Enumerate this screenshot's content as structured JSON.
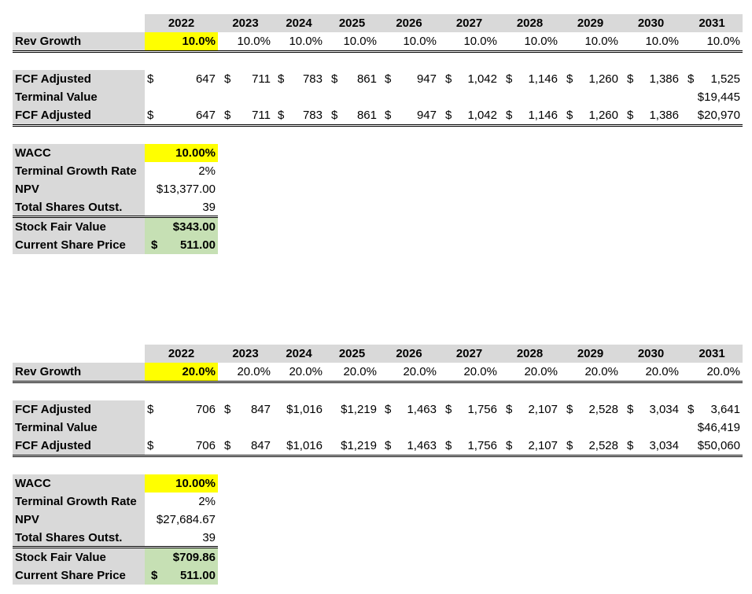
{
  "sheets": [
    {
      "years": [
        "2022",
        "2023",
        "2024",
        "2025",
        "2026",
        "2027",
        "2028",
        "2029",
        "2030",
        "2031"
      ],
      "rev_growth_label": "Rev Growth",
      "rev_growth": [
        "10.0%",
        "10.0%",
        "10.0%",
        "10.0%",
        "10.0%",
        "10.0%",
        "10.0%",
        "10.0%",
        "10.0%",
        "10.0%"
      ],
      "fcf1_label": "FCF Adjusted",
      "fcf1_dollars": [
        "$",
        "$",
        "$",
        "$",
        "$",
        "$",
        "$",
        "$",
        "$",
        "$"
      ],
      "fcf1": [
        "647",
        "711",
        "783",
        "861",
        "947",
        "1,042",
        "1,146",
        "1,260",
        "1,386",
        "1,525"
      ],
      "tv_label": "Terminal Value",
      "tv_value": "$19,445",
      "fcf2_label": "FCF Adjusted",
      "fcf2_dollars": [
        "$",
        "$",
        "$",
        "$",
        "$",
        "$",
        "$",
        "$",
        "$",
        ""
      ],
      "fcf2": [
        "647",
        "711",
        "783",
        "861",
        "947",
        "1,042",
        "1,146",
        "1,260",
        "1,386",
        "$20,970"
      ],
      "wacc_label": "WACC",
      "wacc": "10.00%",
      "tgr_label": "Terminal Growth Rate",
      "tgr": "2%",
      "npv_label": "NPV",
      "npv": "$13,377.00",
      "shares_label": "Total Shares Outst.",
      "shares": "39",
      "fair_label": "Stock Fair Value",
      "fair": "$343.00",
      "price_label": "Current Share Price",
      "price_dollar": "$",
      "price": "511.00"
    },
    {
      "years": [
        "2022",
        "2023",
        "2024",
        "2025",
        "2026",
        "2027",
        "2028",
        "2029",
        "2030",
        "2031"
      ],
      "rev_growth_label": "Rev Growth",
      "rev_growth": [
        "20.0%",
        "20.0%",
        "20.0%",
        "20.0%",
        "20.0%",
        "20.0%",
        "20.0%",
        "20.0%",
        "20.0%",
        "20.0%"
      ],
      "fcf1_label": "FCF Adjusted",
      "fcf1_dollars": [
        "$",
        "$",
        "",
        "",
        "$",
        "$",
        "$",
        "$",
        "$",
        "$"
      ],
      "fcf1": [
        "706",
        "847",
        "$1,016",
        "$1,219",
        "1,463",
        "1,756",
        "2,107",
        "2,528",
        "3,034",
        "3,641"
      ],
      "tv_label": "Terminal Value",
      "tv_value": "$46,419",
      "fcf2_label": "FCF Adjusted",
      "fcf2_dollars": [
        "$",
        "$",
        "",
        "",
        "$",
        "$",
        "$",
        "$",
        "$",
        ""
      ],
      "fcf2": [
        "706",
        "847",
        "$1,016",
        "$1,219",
        "1,463",
        "1,756",
        "2,107",
        "2,528",
        "3,034",
        "$50,060"
      ],
      "wacc_label": "WACC",
      "wacc": "10.00%",
      "tgr_label": "Terminal Growth Rate",
      "tgr": "2%",
      "npv_label": "NPV",
      "npv": "$27,684.67",
      "shares_label": "Total Shares Outst.",
      "shares": "39",
      "fair_label": "Stock Fair Value",
      "fair": "$709.86",
      "price_label": "Current Share Price",
      "price_dollar": "$",
      "price": "511.00"
    }
  ]
}
